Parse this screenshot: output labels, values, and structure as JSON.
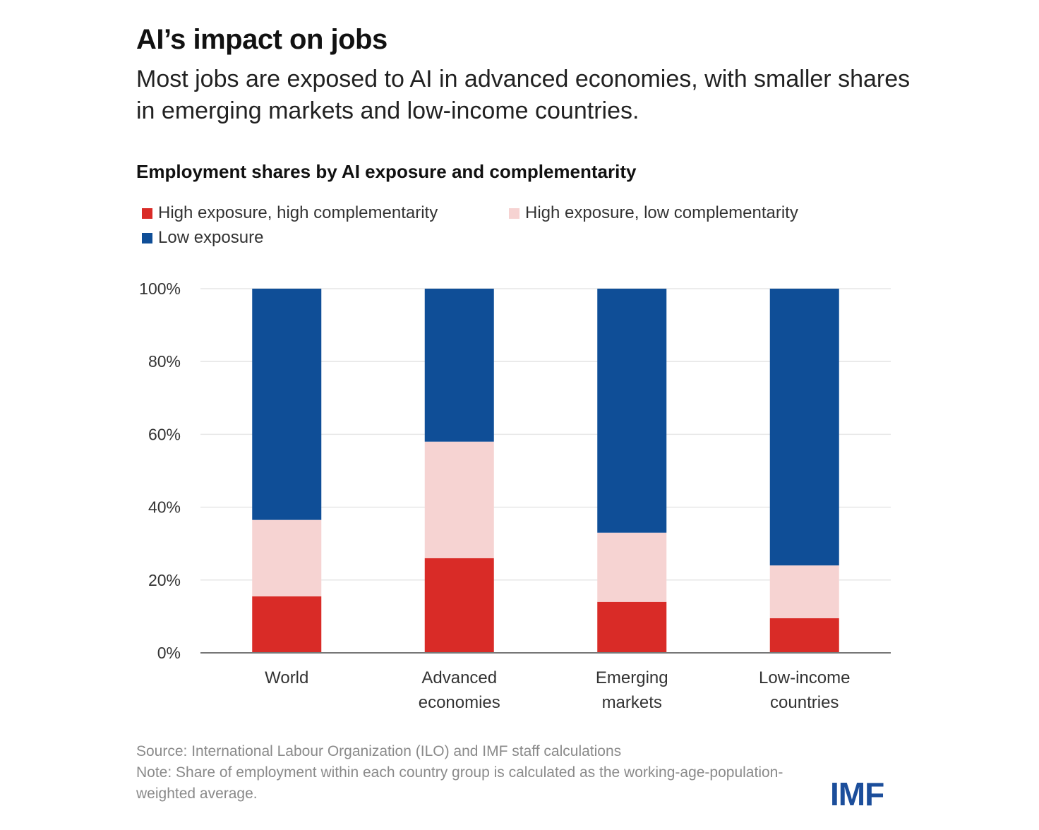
{
  "header": {
    "title": "AI’s impact on jobs",
    "subtitle": "Most jobs are exposed to AI in advanced economies, with smaller shares in emerging markets and low-income countries."
  },
  "footer": {
    "source": "Source: International Labour Organization (ILO) and IMF staff calculations",
    "note": "Note: Share of employment within each country group is calculated as the working-age-population-weighted average."
  },
  "logo": {
    "text": "IMF",
    "color": "#1c4e9b"
  },
  "colors": {
    "high_exposure_high_complementarity": "#d92b27",
    "high_exposure_low_complementarity": "#f6d3d2",
    "low_exposure": "#0f4e97",
    "grid": "#e6e6e6",
    "axis": "#777777"
  },
  "chart_data": {
    "type": "bar",
    "stacked": true,
    "title": "Employment shares by AI exposure and complementarity",
    "xlabel": "",
    "ylabel": "",
    "ylim": [
      0,
      100
    ],
    "yticks": [
      0,
      20,
      40,
      60,
      80,
      100
    ],
    "ytick_labels": [
      "0%",
      "20%",
      "40%",
      "60%",
      "80%",
      "100%"
    ],
    "grid": true,
    "legend_position": "top-left",
    "categories": [
      "World",
      "Advanced economies",
      "Emerging markets",
      "Low-income countries"
    ],
    "category_lines": [
      [
        "World"
      ],
      [
        "Advanced",
        "economies"
      ],
      [
        "Emerging",
        "markets"
      ],
      [
        "Low-income",
        "countries"
      ]
    ],
    "series": [
      {
        "name": "High exposure, high complementarity",
        "key": "high_exposure_high_complementarity",
        "values": [
          15.5,
          26,
          14,
          9.5
        ]
      },
      {
        "name": "High exposure, low complementarity",
        "key": "high_exposure_low_complementarity",
        "values": [
          21,
          32,
          19,
          14.5
        ]
      },
      {
        "name": "Low exposure",
        "key": "low_exposure",
        "values": [
          63.5,
          42,
          67,
          76
        ]
      }
    ]
  }
}
